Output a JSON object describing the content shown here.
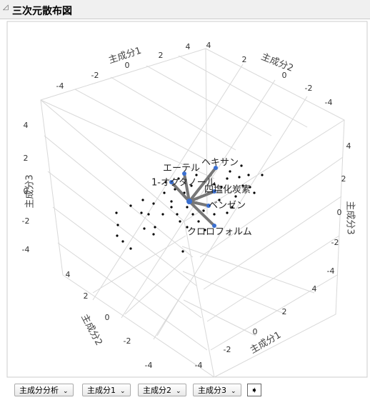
{
  "header": {
    "title": "三次元散布図"
  },
  "axes": [
    {
      "label": "主成分1",
      "ticks": [
        "-4",
        "-2",
        "0",
        "2",
        "4"
      ]
    },
    {
      "label": "主成分2",
      "ticks": [
        "4",
        "2",
        "0",
        "-2",
        "-4"
      ]
    },
    {
      "label": "主成分3",
      "ticks": [
        "4",
        "2",
        "0",
        "-2",
        "-4"
      ]
    },
    {
      "label": "主成分3",
      "ticks": [
        "4",
        "2",
        "0",
        "-2",
        "-4"
      ]
    },
    {
      "label": "主成分2",
      "ticks": [
        "4",
        "2",
        "0",
        "-2",
        "-4"
      ]
    },
    {
      "label": "主成分1",
      "ticks": [
        "4",
        "2",
        "0",
        "-2",
        "-4"
      ]
    }
  ],
  "vectors": [
    "エーテル",
    "ヘキサン",
    "1-オクタノール",
    "四塩化炭素",
    "ベンゼン",
    "クロロフォルム"
  ],
  "controls": [
    "主成分分析",
    "主成分1",
    "主成分2",
    "主成分3"
  ]
}
